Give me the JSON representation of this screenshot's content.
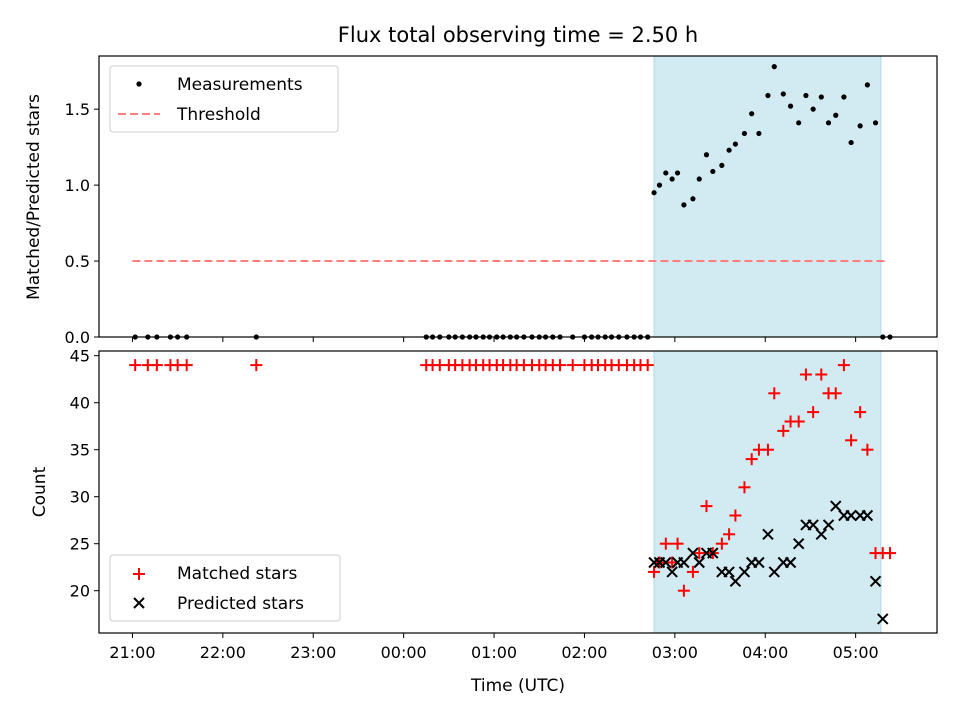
{
  "chart_data": {
    "type": "scatter",
    "title": "Flux total observing time = 2.50 h",
    "xlabel": "Time (UTC)",
    "x_unit": "hours since 21:00 UTC",
    "xlim": [
      -0.37,
      8.9
    ],
    "x_ticks": [
      {
        "value": 0,
        "label": "21:00"
      },
      {
        "value": 1,
        "label": "22:00"
      },
      {
        "value": 2,
        "label": "23:00"
      },
      {
        "value": 3,
        "label": "00:00"
      },
      {
        "value": 4,
        "label": "01:00"
      },
      {
        "value": 5,
        "label": "02:00"
      },
      {
        "value": 6,
        "label": "03:00"
      },
      {
        "value": 7,
        "label": "04:00"
      },
      {
        "value": 8,
        "label": "05:00"
      }
    ],
    "observing_window": {
      "start": 5.77,
      "end": 8.28,
      "color": "#add8e6"
    },
    "panels": [
      {
        "name": "ratio",
        "ylabel": "Matched/Predicted stars",
        "ylim": [
          0,
          1.85
        ],
        "y_ticks": [
          {
            "value": 0,
            "label": "0.0"
          },
          {
            "value": 0.5,
            "label": "0.5"
          },
          {
            "value": 1.0,
            "label": "1.0"
          },
          {
            "value": 1.5,
            "label": "1.5"
          }
        ],
        "legend": [
          "Measurements",
          "Threshold"
        ],
        "threshold": {
          "name": "Threshold",
          "value": 0.5,
          "x_range": [
            0,
            8.33
          ],
          "color": "#ff7f7f"
        },
        "series": [
          {
            "name": "Measurements",
            "color": "#000000",
            "x": [
              0.03,
              0.17,
              0.27,
              0.42,
              0.5,
              0.6,
              1.37,
              3.25,
              3.32,
              3.4,
              3.5,
              3.57,
              3.65,
              3.73,
              3.8,
              3.88,
              3.95,
              4.03,
              4.1,
              4.18,
              4.25,
              4.33,
              4.42,
              4.5,
              4.57,
              4.65,
              4.73,
              4.87,
              5.0,
              5.08,
              5.15,
              5.23,
              5.3,
              5.38,
              5.47,
              5.55,
              5.62,
              5.7,
              5.77,
              5.83,
              5.9,
              5.97,
              6.03,
              6.1,
              6.2,
              6.27,
              6.35,
              6.42,
              6.52,
              6.6,
              6.67,
              6.77,
              6.85,
              6.93,
              7.03,
              7.1,
              7.2,
              7.28,
              7.37,
              7.45,
              7.53,
              7.62,
              7.7,
              7.78,
              7.87,
              7.95,
              8.05,
              8.13,
              8.22,
              8.3,
              8.38
            ],
            "y": [
              0,
              0,
              0,
              0,
              0,
              0,
              0,
              0,
              0,
              0,
              0,
              0,
              0,
              0,
              0,
              0,
              0,
              0,
              0,
              0,
              0,
              0,
              0,
              0,
              0,
              0,
              0,
              0,
              0,
              0,
              0,
              0,
              0,
              0,
              0,
              0,
              0,
              0,
              0.95,
              1.0,
              1.08,
              1.04,
              1.08,
              0.87,
              0.91,
              1.04,
              1.2,
              1.09,
              1.13,
              1.23,
              1.27,
              1.34,
              1.47,
              1.34,
              1.59,
              1.78,
              1.6,
              1.52,
              1.41,
              1.59,
              1.5,
              1.58,
              1.41,
              1.46,
              1.58,
              1.28,
              1.39,
              1.66,
              1.41,
              0.0,
              0.0
            ]
          }
        ]
      },
      {
        "name": "count",
        "ylabel": "Count",
        "ylim": [
          15.5,
          45.5
        ],
        "y_ticks": [
          {
            "value": 20,
            "label": "20"
          },
          {
            "value": 25,
            "label": "25"
          },
          {
            "value": 30,
            "label": "30"
          },
          {
            "value": 35,
            "label": "35"
          },
          {
            "value": 40,
            "label": "40"
          },
          {
            "value": 45,
            "label": "45"
          }
        ],
        "legend": [
          "Matched stars",
          "Predicted stars"
        ],
        "series": [
          {
            "name": "Matched stars",
            "color": "#ff0000",
            "marker": "plus",
            "x": [
              0.03,
              0.17,
              0.27,
              0.42,
              0.5,
              0.6,
              1.37,
              3.25,
              3.32,
              3.4,
              3.5,
              3.57,
              3.65,
              3.73,
              3.8,
              3.88,
              3.95,
              4.03,
              4.1,
              4.18,
              4.25,
              4.33,
              4.42,
              4.5,
              4.57,
              4.65,
              4.73,
              4.87,
              5.0,
              5.08,
              5.15,
              5.23,
              5.3,
              5.38,
              5.47,
              5.55,
              5.62,
              5.7,
              5.77,
              5.83,
              5.9,
              5.97,
              6.03,
              6.1,
              6.2,
              6.27,
              6.35,
              6.42,
              6.52,
              6.6,
              6.67,
              6.77,
              6.85,
              6.93,
              7.03,
              7.1,
              7.2,
              7.28,
              7.37,
              7.45,
              7.53,
              7.62,
              7.7,
              7.78,
              7.87,
              7.95,
              8.05,
              8.13,
              8.22,
              8.3,
              8.38
            ],
            "y": [
              44,
              44,
              44,
              44,
              44,
              44,
              44,
              44,
              44,
              44,
              44,
              44,
              44,
              44,
              44,
              44,
              44,
              44,
              44,
              44,
              44,
              44,
              44,
              44,
              44,
              44,
              44,
              44,
              44,
              44,
              44,
              44,
              44,
              44,
              44,
              44,
              44,
              44,
              22,
              23,
              25,
              23,
              25,
              20,
              22,
              24,
              29,
              24,
              25,
              26,
              28,
              31,
              34,
              35,
              35,
              41,
              37,
              38,
              38,
              43,
              39,
              43,
              41,
              41,
              44,
              36,
              39,
              35,
              24,
              24,
              24
            ]
          },
          {
            "name": "Predicted stars",
            "color": "#000000",
            "marker": "x",
            "x": [
              5.77,
              5.83,
              5.9,
              5.97,
              6.03,
              6.1,
              6.2,
              6.27,
              6.35,
              6.42,
              6.52,
              6.6,
              6.67,
              6.77,
              6.85,
              6.93,
              7.03,
              7.1,
              7.2,
              7.28,
              7.37,
              7.45,
              7.53,
              7.62,
              7.7,
              7.78,
              7.87,
              7.95,
              8.05,
              8.13,
              8.22,
              8.3
            ],
            "y": [
              23,
              23,
              23,
              22,
              23,
              23,
              24,
              23,
              24,
              24,
              22,
              22,
              21,
              22,
              23,
              23,
              26,
              22,
              23,
              23,
              25,
              27,
              27,
              26,
              27,
              29,
              28,
              28,
              28,
              28,
              21,
              17
            ]
          }
        ]
      }
    ]
  }
}
